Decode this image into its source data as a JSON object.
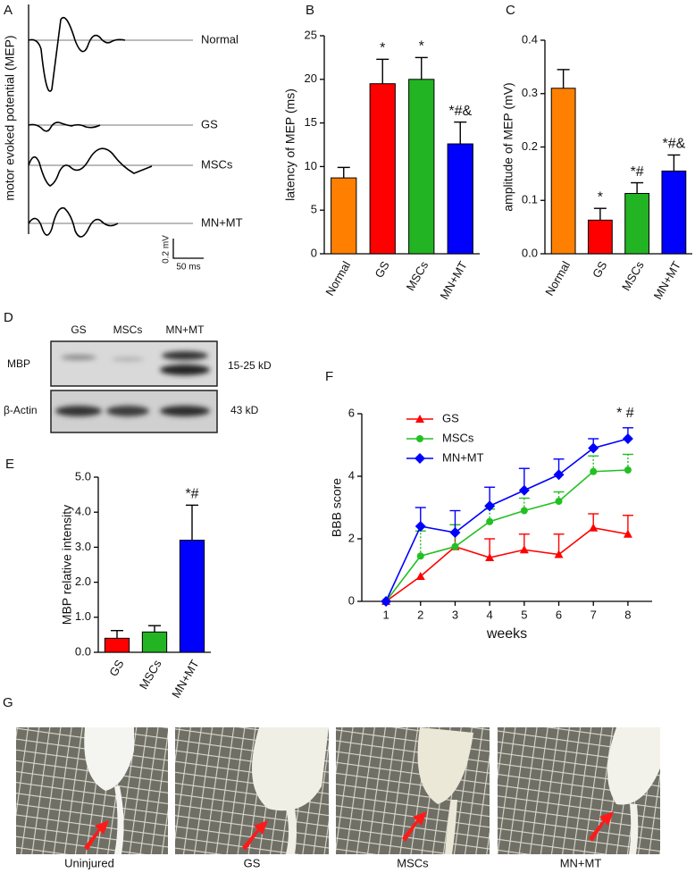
{
  "panel_letters": [
    "A",
    "B",
    "C",
    "D",
    "E",
    "F",
    "G"
  ],
  "panel_a": {
    "ylabel": "motor evoked potential (MEP)",
    "traces": [
      "Normal",
      "GS",
      "MSCs",
      "MN+MT"
    ],
    "scale_y": "0.2 mV",
    "scale_x": "50 ms"
  },
  "panel_d": {
    "lanes": [
      "GS",
      "MSCs",
      "MN+MT"
    ],
    "rows": [
      {
        "label": "MBP",
        "size": "15-25 kD"
      },
      {
        "label": "β-Actin",
        "size": "43 kD"
      }
    ]
  },
  "panel_g": {
    "captions": [
      "Uninjured",
      "GS",
      "MSCs",
      "MN+MT"
    ]
  },
  "chart_data": [
    {
      "type": "bar",
      "ylabel": "latency of MEP (ms)",
      "categories": [
        "Normal",
        "GS",
        "MSCs",
        "MN+MT"
      ],
      "values": [
        8.7,
        19.5,
        20.0,
        12.6
      ],
      "errors": [
        1.2,
        2.8,
        2.5,
        2.5
      ],
      "annotations": [
        null,
        "*",
        "*",
        "*#&"
      ],
      "colors": [
        "#ff7f00",
        "#ff0000",
        "#22b422",
        "#0000ff"
      ],
      "ylim": [
        0,
        25
      ],
      "yticks": [
        0,
        5,
        10,
        15,
        20,
        25
      ]
    },
    {
      "type": "bar",
      "ylabel": "amplitude of MEP (mV)",
      "categories": [
        "Normal",
        "GS",
        "MSCs",
        "MN+MT"
      ],
      "values": [
        0.31,
        0.063,
        0.113,
        0.155
      ],
      "errors": [
        0.035,
        0.022,
        0.02,
        0.03
      ],
      "annotations": [
        null,
        "*",
        "*#",
        "*#&"
      ],
      "colors": [
        "#ff7f00",
        "#ff0000",
        "#22b422",
        "#0000ff"
      ],
      "ylim": [
        0,
        0.4
      ],
      "yticks": [
        {
          "value": 0,
          "label": "0.0"
        },
        0.1,
        0.2,
        0.3,
        0.4
      ]
    },
    {
      "type": "bar",
      "ylabel": "MBP relative intensity",
      "categories": [
        "GS",
        "MSCs",
        "MN+MT"
      ],
      "values": [
        0.4,
        0.58,
        3.2
      ],
      "errors": [
        0.22,
        0.18,
        1.0
      ],
      "annotations": [
        null,
        null,
        "*#"
      ],
      "colors": [
        "#ff0000",
        "#22b422",
        "#0000ff"
      ],
      "ylim": [
        0,
        5
      ],
      "yticks": [
        {
          "value": 0,
          "label": "0.0"
        },
        {
          "value": 1,
          "label": "1.0"
        },
        {
          "value": 2,
          "label": "2.0"
        },
        {
          "value": 3,
          "label": "3.0"
        },
        {
          "value": 4,
          "label": "4.0"
        },
        {
          "value": 5,
          "label": "5.0"
        }
      ]
    },
    {
      "type": "line",
      "ylabel": "BBB score",
      "xlabel": "weeks",
      "x": [
        1,
        2,
        3,
        4,
        5,
        6,
        7,
        8
      ],
      "series": [
        {
          "name": "GS",
          "color": "#ff0000",
          "marker": "triangle",
          "values": [
            0,
            0.8,
            1.75,
            1.4,
            1.65,
            1.5,
            2.35,
            2.15
          ],
          "errors": [
            0,
            0,
            0.7,
            0.6,
            0.5,
            0.65,
            0.45,
            0.6
          ]
        },
        {
          "name": "MSCs",
          "color": "#22c022",
          "marker": "circle",
          "values": [
            0,
            1.45,
            1.75,
            2.55,
            2.9,
            3.2,
            4.15,
            4.2
          ],
          "errors": [
            0,
            0.8,
            0.7,
            0.4,
            0.4,
            0.3,
            0.5,
            0.5
          ]
        },
        {
          "name": "MN+MT",
          "color": "#0000ff",
          "marker": "diamond",
          "values": [
            0,
            2.4,
            2.2,
            3.05,
            3.55,
            4.05,
            4.9,
            5.2
          ],
          "errors": [
            0,
            0.6,
            0.7,
            0.6,
            0.7,
            0.5,
            0.3,
            0.35
          ]
        }
      ],
      "annotation": "* #",
      "legend": "upper left",
      "xlim": [
        0.3,
        8.7
      ],
      "xticks": [
        1,
        2,
        3,
        4,
        5,
        6,
        7,
        8
      ],
      "ylim": [
        0,
        6
      ],
      "yticks": [
        0,
        2,
        4,
        6
      ]
    }
  ]
}
